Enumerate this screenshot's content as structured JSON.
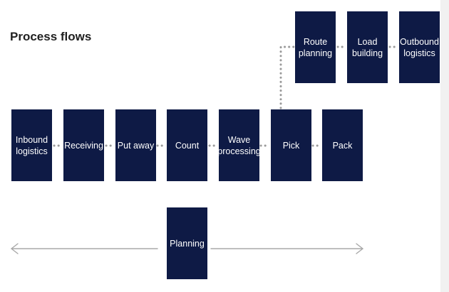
{
  "title": "Process flows",
  "top_steps": [
    {
      "id": "route-planning",
      "label": "Route\nplanning"
    },
    {
      "id": "load-building",
      "label": "Load\nbuilding"
    },
    {
      "id": "outbound-logistics",
      "label": "Outbound\nlogistics"
    }
  ],
  "main_steps": [
    {
      "id": "inbound-logistics",
      "label": "Inbound\nlogistics"
    },
    {
      "id": "receiving",
      "label": "Receiving"
    },
    {
      "id": "put-away",
      "label": "Put away"
    },
    {
      "id": "count",
      "label": "Count"
    },
    {
      "id": "wave-processing",
      "label": "Wave\nprocessing"
    },
    {
      "id": "pick",
      "label": "Pick"
    },
    {
      "id": "pack",
      "label": "Pack"
    }
  ],
  "planning": {
    "label": "Planning"
  },
  "colors": {
    "box_fill": "#0e1a45",
    "box_text": "#ffffff",
    "connector": "#9a9a9a",
    "arrow": "#a8a8a8"
  }
}
